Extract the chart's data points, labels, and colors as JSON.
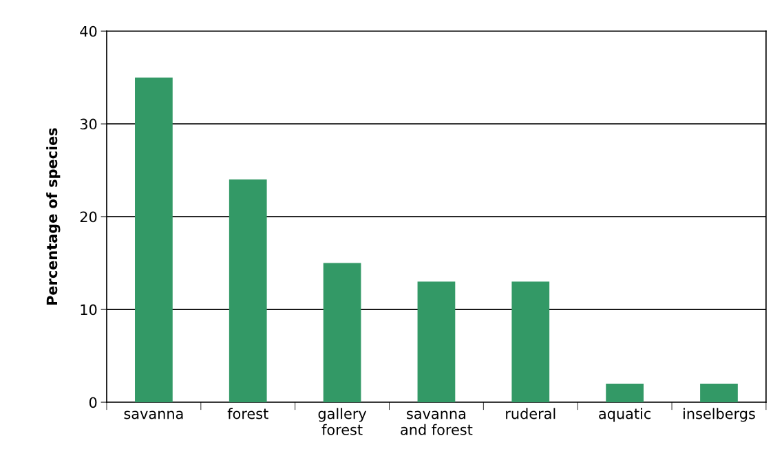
{
  "chart_data": {
    "type": "bar",
    "ylabel": "Percentage of species",
    "categories": [
      "savanna",
      "forest",
      "gallery\nforest",
      "savanna\nand forest",
      "ruderal",
      "aquatic",
      "inselbergs"
    ],
    "values": [
      35,
      24,
      15,
      13,
      13,
      2,
      2
    ],
    "color": "#339966",
    "ylim": [
      0,
      40
    ],
    "yticks": [
      0,
      10,
      20,
      30,
      40
    ],
    "grid": "y",
    "legend": false
  }
}
